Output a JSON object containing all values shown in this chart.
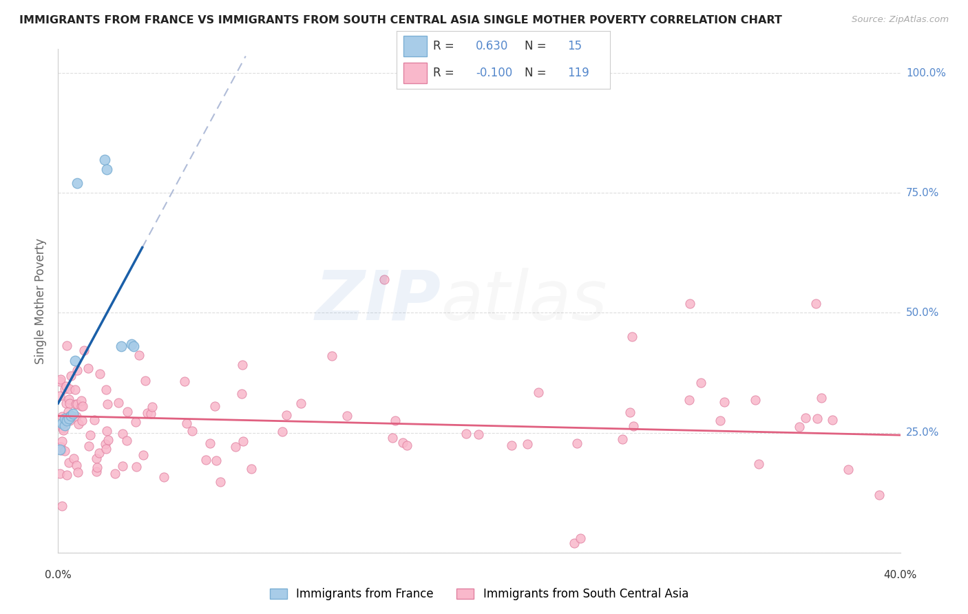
{
  "title": "IMMIGRANTS FROM FRANCE VS IMMIGRANTS FROM SOUTH CENTRAL ASIA SINGLE MOTHER POVERTY CORRELATION CHART",
  "source": "Source: ZipAtlas.com",
  "ylabel": "Single Mother Poverty",
  "xlim": [
    0.0,
    0.4
  ],
  "ylim": [
    0.0,
    1.05
  ],
  "legend_france_R": "0.630",
  "legend_france_N": "15",
  "legend_sca_R": "-0.100",
  "legend_sca_N": "119",
  "blue_scatter_color": "#a8cce8",
  "blue_edge_color": "#7bafd4",
  "blue_line_color": "#1a5fa8",
  "blue_dash_color": "#b0bcd8",
  "pink_scatter_color": "#f9b8cb",
  "pink_edge_color": "#e080a0",
  "pink_line_color": "#e06080",
  "grid_color": "#dddddd",
  "right_tick_color": "#5588cc",
  "france_x": [
    0.001,
    0.002,
    0.003,
    0.003,
    0.004,
    0.005,
    0.006,
    0.007,
    0.008,
    0.009,
    0.022,
    0.023,
    0.03,
    0.035,
    0.036
  ],
  "france_y": [
    0.215,
    0.27,
    0.265,
    0.28,
    0.275,
    0.28,
    0.285,
    0.29,
    0.4,
    0.77,
    0.82,
    0.8,
    0.43,
    0.435,
    0.43
  ],
  "yticks": [
    0.0,
    0.25,
    0.5,
    0.75,
    1.0
  ],
  "ytick_labels": [
    "",
    "25.0%",
    "50.0%",
    "75.0%",
    "100.0%"
  ]
}
